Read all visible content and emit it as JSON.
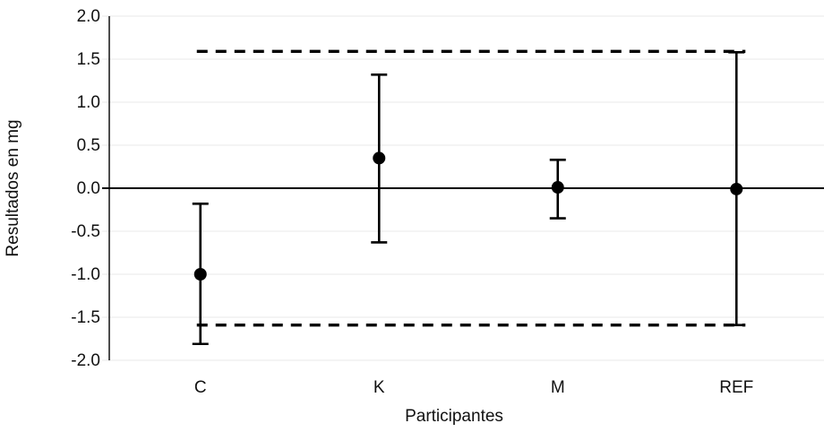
{
  "chart_data": {
    "type": "scatter",
    "title": "",
    "xlabel": "Participantes",
    "ylabel": "Resultados en mg",
    "categories": [
      "C",
      "K",
      "M",
      "REF"
    ],
    "series": [
      {
        "points": [
          {
            "category": "C",
            "value": -1.0,
            "lower": -1.81,
            "upper": -0.18
          },
          {
            "category": "K",
            "value": 0.35,
            "lower": -0.63,
            "upper": 1.32
          },
          {
            "category": "M",
            "value": 0.01,
            "lower": -0.35,
            "upper": 0.33
          },
          {
            "category": "REF",
            "value": -0.01,
            "lower": -1.59,
            "upper": 1.58
          }
        ]
      }
    ],
    "reference_lines": [
      {
        "value": 1.59,
        "style": "dashed"
      },
      {
        "value": -1.59,
        "style": "dashed"
      },
      {
        "value": 0.0,
        "style": "solid"
      }
    ],
    "ylim": [
      -2.0,
      2.0
    ],
    "yticks": [
      2.0,
      1.5,
      1.0,
      0.5,
      0.0,
      -0.5,
      -1.0,
      -1.5,
      -2.0
    ],
    "grid": true,
    "legend": "none",
    "marker": "filled-circle",
    "error_bar_caps": true,
    "colors": {
      "foreground": "#000000",
      "grid": "#e8e8e8",
      "text": "#111111",
      "background": "#ffffff"
    }
  }
}
